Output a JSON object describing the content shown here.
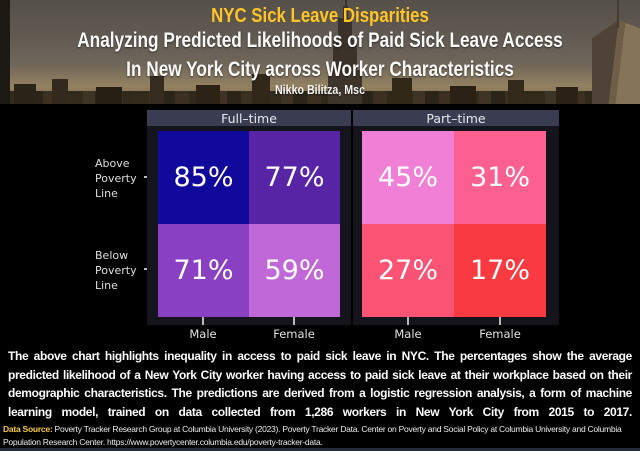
{
  "header": {
    "title": "NYC Sick Leave Disparities",
    "subtitle_line1": "Analyzing Predicted Likelihoods of Paid Sick Leave Access",
    "subtitle_line2": "In New York City across Worker Characteristics",
    "author": "Nikko Bilitza, Msc"
  },
  "chart_data": {
    "type": "heatmap",
    "title": "NYC Sick Leave Disparities",
    "subtitle": "Analyzing Predicted Likelihoods of Paid Sick Leave Access In New York City across Worker Characteristics",
    "unit": "percent",
    "facet_labels": [
      "Full–time",
      "Part–time"
    ],
    "row_labels": [
      "Above Poverty Line",
      "Below Poverty Line"
    ],
    "column_labels": [
      "Male",
      "Female"
    ],
    "series": [
      {
        "facet": "Full–time",
        "values": [
          {
            "row": "Above Poverty Line",
            "Male": 85,
            "Female": 77
          },
          {
            "row": "Below Poverty Line",
            "Male": 71,
            "Female": 59
          }
        ]
      },
      {
        "facet": "Part–time",
        "values": [
          {
            "row": "Above Poverty Line",
            "Male": 45,
            "Female": 31
          },
          {
            "row": "Below Poverty Line",
            "Male": 27,
            "Female": 17
          }
        ]
      }
    ],
    "legend": "none",
    "grid": false
  },
  "chart_ui": {
    "facets": [
      {
        "label": "Full–time",
        "cells": [
          {
            "text": "85%",
            "color": "#10099B"
          },
          {
            "text": "77%",
            "color": "#5824A6"
          },
          {
            "text": "71%",
            "color": "#8A40C2"
          },
          {
            "text": "59%",
            "color": "#C168D8"
          }
        ],
        "col_labels": [
          "Male",
          "Female"
        ]
      },
      {
        "label": "Part–time",
        "cells": [
          {
            "text": "45%",
            "color": "#F07FD6"
          },
          {
            "text": "31%",
            "color": "#FB6090"
          },
          {
            "text": "27%",
            "color": "#FB5374"
          },
          {
            "text": "17%",
            "color": "#F93B41"
          }
        ],
        "col_labels": [
          "Male",
          "Female"
        ]
      }
    ],
    "row_labels": [
      "Above\nPoverty\nLine",
      "Below\nPoverty\nLine"
    ]
  },
  "caption": {
    "text": "The above chart highlights inequality in access to paid sick leave in NYC. The percentages show the average predicted likelihood of a New York City worker having access to paid sick leave at their workplace based on their demographic characteristics. The predictions are derived from a logistic regression analysis, a form of machine learning model, trained on data collected from 1,286 workers in New York City from 2015 to 2017."
  },
  "source": {
    "label": "Data Source:",
    "text": " Poverty Tracker Research Group at Columbia University (2023). Poverty Tracker Data. Center on Poverty and Social Policy at Columbia University and Columbia Population Research Center. https://www.povertycenter.columbia.edu/poverty-tracker-data."
  },
  "colors": {
    "accent_yellow": "#FFC526",
    "facet_strip_bg": "#3A3D52",
    "panel_bg": "#14141C",
    "background": "#000000"
  }
}
